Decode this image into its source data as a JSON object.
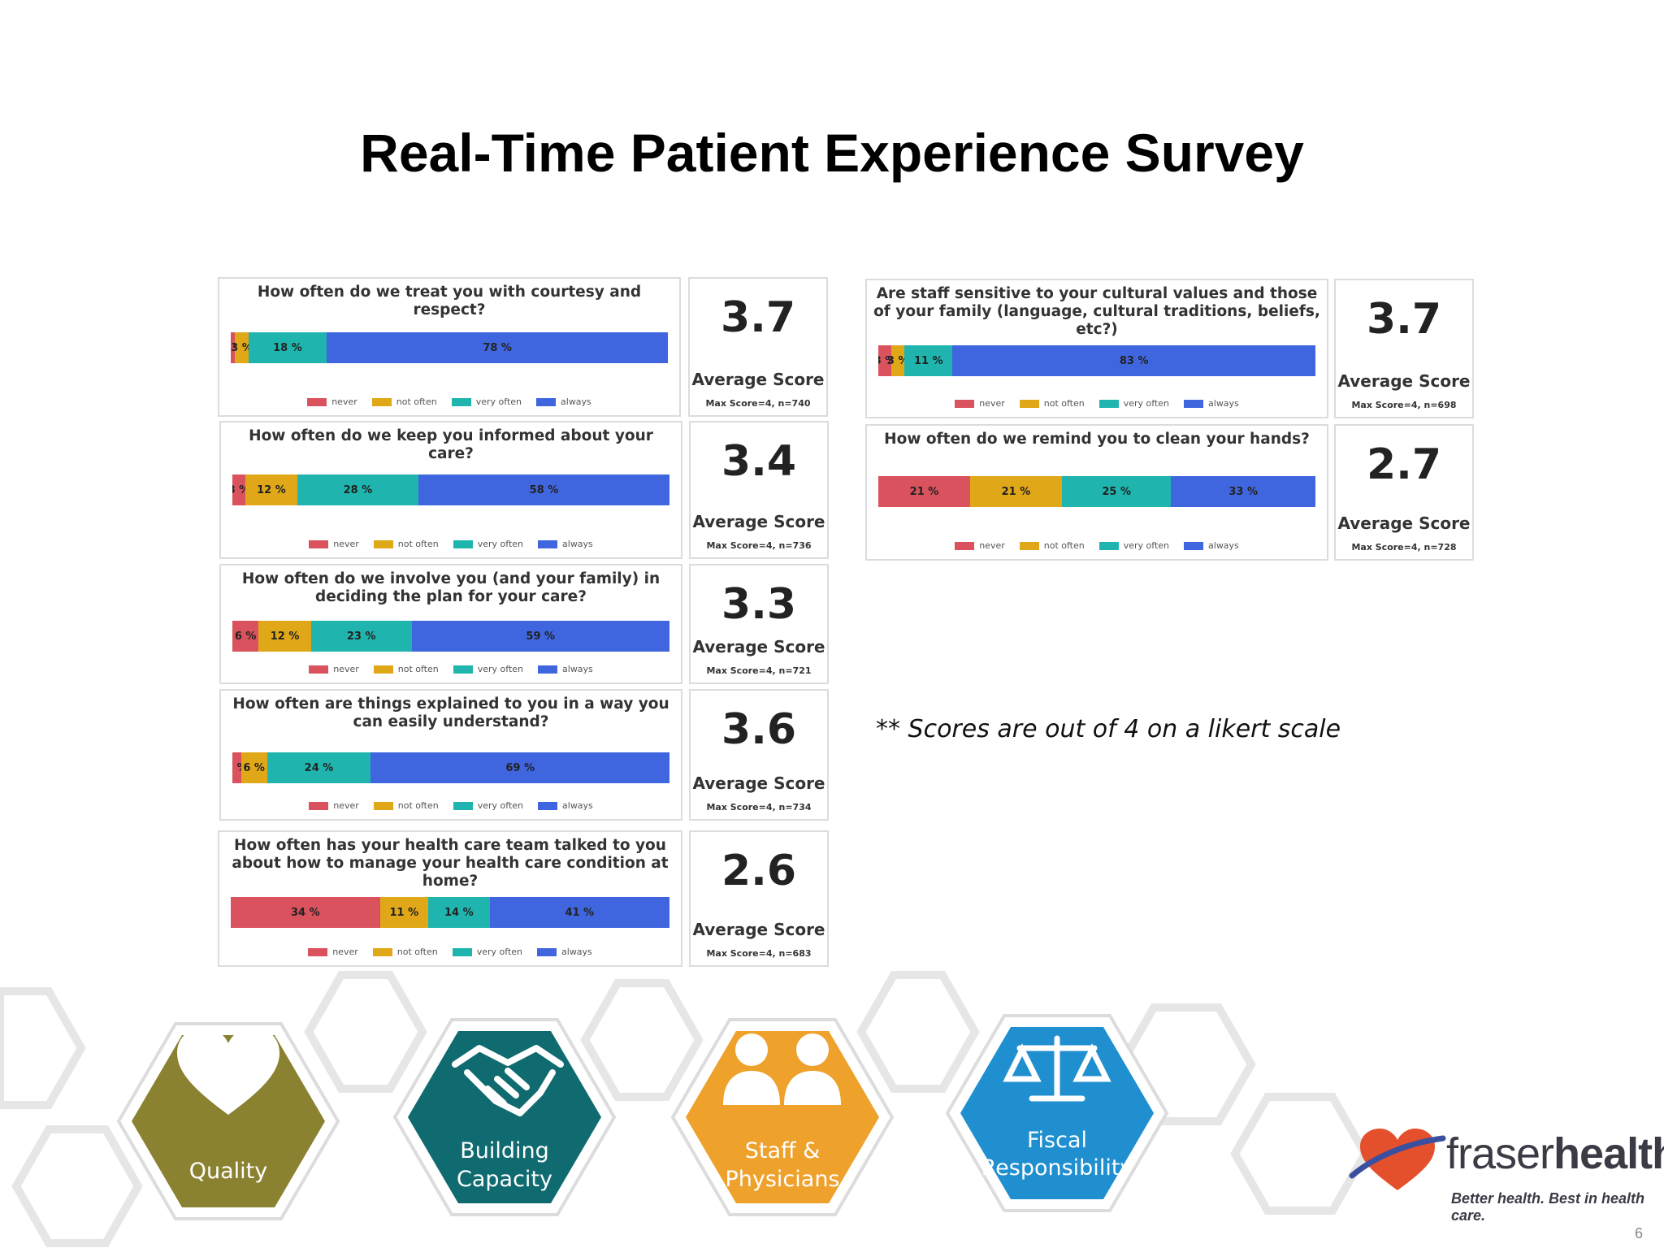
{
  "slide": {
    "title": "Real-Time Patient Experience Survey",
    "note": "** Scores are out of 4 on a likert scale",
    "page_number": "6"
  },
  "legend": {
    "never": "never",
    "not_often": "not often",
    "very_often": "very often",
    "always": "always"
  },
  "colors": {
    "never": "#d9525e",
    "not_often": "#e0a818",
    "very_often": "#1fb5ae",
    "always": "#3f66de"
  },
  "score_caption": "Average Score",
  "chart_data": [
    {
      "type": "bar",
      "orientation": "horizontal-stacked",
      "title": "How often do we treat you with courtesy and respect?",
      "categories": [
        "never",
        "not often",
        "very often",
        "always"
      ],
      "values": [
        1,
        3,
        18,
        78
      ],
      "labels": [
        "1 %",
        "3 %",
        "18 %",
        "78 %"
      ],
      "average_score": "3.7",
      "max_score_note": "Max Score=4, n=740"
    },
    {
      "type": "bar",
      "orientation": "horizontal-stacked",
      "title": "How often do we keep you informed about your care?",
      "categories": [
        "never",
        "not often",
        "very often",
        "always"
      ],
      "values": [
        3,
        12,
        28,
        58
      ],
      "labels": [
        "3 %",
        "12 %",
        "28 %",
        "58 %"
      ],
      "average_score": "3.4",
      "max_score_note": "Max Score=4, n=736"
    },
    {
      "type": "bar",
      "orientation": "horizontal-stacked",
      "title": "How often do we involve you (and your family) in deciding the plan for your care?",
      "categories": [
        "never",
        "not often",
        "very often",
        "always"
      ],
      "values": [
        6,
        12,
        23,
        59
      ],
      "labels": [
        "6 %",
        "12 %",
        "23 %",
        "59 %"
      ],
      "average_score": "3.3",
      "max_score_note": "Max Score=4, n=721"
    },
    {
      "type": "bar",
      "orientation": "horizontal-stacked",
      "title": "How often are things explained to you in a way you can easily understand?",
      "categories": [
        "never",
        "not often",
        "very often",
        "always"
      ],
      "values": [
        2,
        6,
        24,
        69
      ],
      "labels": [
        "2 %",
        "6 %",
        "24 %",
        "69 %"
      ],
      "average_score": "3.6",
      "max_score_note": "Max Score=4, n=734"
    },
    {
      "type": "bar",
      "orientation": "horizontal-stacked",
      "title": "How often has your health care team talked to you about how to manage your health care condition at home?",
      "categories": [
        "never",
        "not often",
        "very often",
        "always"
      ],
      "values": [
        34,
        11,
        14,
        41
      ],
      "labels": [
        "34 %",
        "11 %",
        "14 %",
        "41 %"
      ],
      "average_score": "2.6",
      "max_score_note": "Max Score=4, n=683"
    },
    {
      "type": "bar",
      "orientation": "horizontal-stacked",
      "title": "Are staff sensitive to your cultural values and those of your family (language, cultural traditions, beliefs, etc?)",
      "categories": [
        "never",
        "not often",
        "very often",
        "always"
      ],
      "values": [
        3,
        3,
        11,
        83
      ],
      "labels": [
        "3 %",
        "3 %",
        "11 %",
        "83 %"
      ],
      "average_score": "3.7",
      "max_score_note": "Max Score=4, n=698"
    },
    {
      "type": "bar",
      "orientation": "horizontal-stacked",
      "title": "How often do we remind you to clean your hands?",
      "categories": [
        "never",
        "not often",
        "very often",
        "always"
      ],
      "values": [
        21,
        21,
        25,
        33
      ],
      "labels": [
        "21 %",
        "21 %",
        "25 %",
        "33 %"
      ],
      "average_score": "2.7",
      "max_score_note": "Max Score=4, n=728"
    }
  ],
  "pillars": [
    {
      "label_lines": [
        "Quality"
      ],
      "color": "#8a8231",
      "icon": "heart-icon"
    },
    {
      "label_lines": [
        "Building",
        "Capacity"
      ],
      "color": "#0f6b6f",
      "icon": "handshake-icon"
    },
    {
      "label_lines": [
        "Staff &",
        "Physicians"
      ],
      "color": "#eea12b",
      "icon": "staff-icon"
    },
    {
      "label_lines": [
        "Fiscal",
        "Responsibility"
      ],
      "color": "#1f8fd0",
      "icon": "scales-icon"
    }
  ],
  "logo": {
    "name_light": "fraser",
    "name_bold": "health",
    "tagline": "Better health. Best in health care."
  }
}
